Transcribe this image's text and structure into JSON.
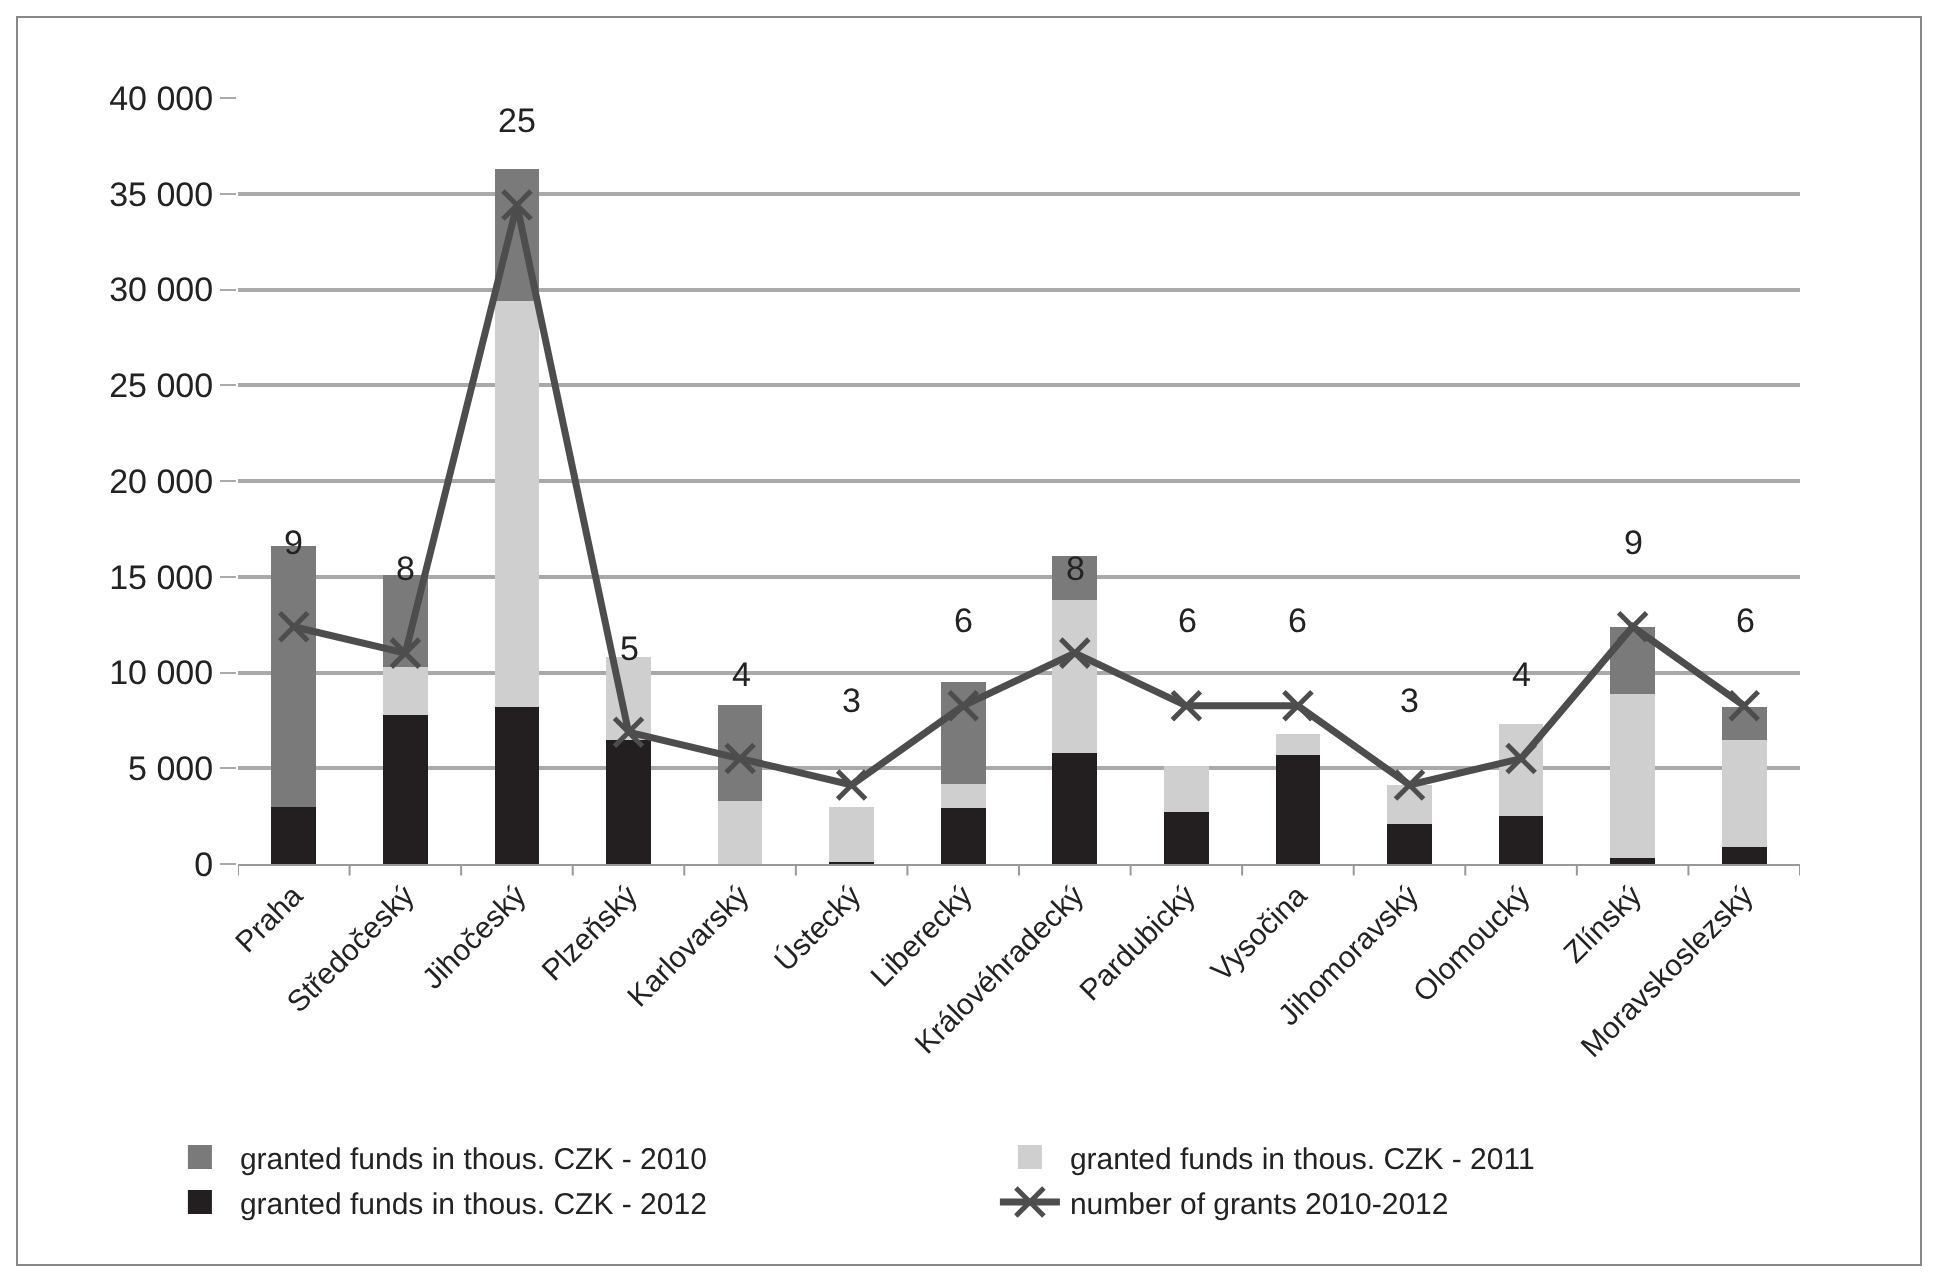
{
  "chart_data": {
    "type": "bar",
    "stacked": true,
    "categories": [
      "Praha",
      "Středočeský",
      "Jihočeský",
      "Plzeňský",
      "Karlovarský",
      "Ústecký",
      "Liberecký",
      "Královéhradecký",
      "Pardubický",
      "Vysočina",
      "Jihomoravský",
      "Olomoucký",
      "Zlínský",
      "Moravskoslezský"
    ],
    "series": [
      {
        "name": "granted funds in thous. CZK - 2012",
        "color": "#231f20",
        "values": [
          3000,
          7800,
          8200,
          6500,
          0,
          100,
          2900,
          5800,
          2700,
          5700,
          2100,
          2500,
          300,
          900
        ]
      },
      {
        "name": "granted funds in thous. CZK - 2011",
        "color": "#cfcfcf",
        "values": [
          0,
          2500,
          21200,
          4300,
          3300,
          2900,
          1300,
          8000,
          2400,
          1100,
          2000,
          4800,
          8600,
          5600
        ]
      },
      {
        "name": "granted funds in thous. CZK - 2010",
        "color": "#7a7a7a",
        "values": [
          13600,
          4800,
          6900,
          0,
          5000,
          0,
          5300,
          2300,
          0,
          0,
          0,
          0,
          3500,
          1700
        ]
      },
      {
        "name": "number of grants 2010-2012",
        "type": "line",
        "axis": "y2",
        "color": "#4d4d4d",
        "marker": "cross",
        "values": [
          9,
          8,
          25,
          5,
          4,
          3,
          6,
          8,
          6,
          6,
          3,
          4,
          9,
          6
        ],
        "value_labels": [
          "9",
          "8",
          "25",
          "5",
          "4",
          "3",
          "6",
          "8",
          "6",
          "6",
          "3",
          "4",
          "9",
          "6"
        ]
      }
    ],
    "ylim": [
      0,
      40000
    ],
    "yticks": [
      {
        "value": 0,
        "label": "0"
      },
      {
        "value": 5000,
        "label": "5 000"
      },
      {
        "value": 10000,
        "label": "10 000"
      },
      {
        "value": 15000,
        "label": "15 000"
      },
      {
        "value": 20000,
        "label": "20 000"
      },
      {
        "value": 25000,
        "label": "25 000"
      },
      {
        "value": 30000,
        "label": "30 000"
      },
      {
        "value": 35000,
        "label": "35 000"
      },
      {
        "value": 40000,
        "label": "40 000"
      }
    ],
    "grid": "y",
    "legend": "bottom"
  }
}
